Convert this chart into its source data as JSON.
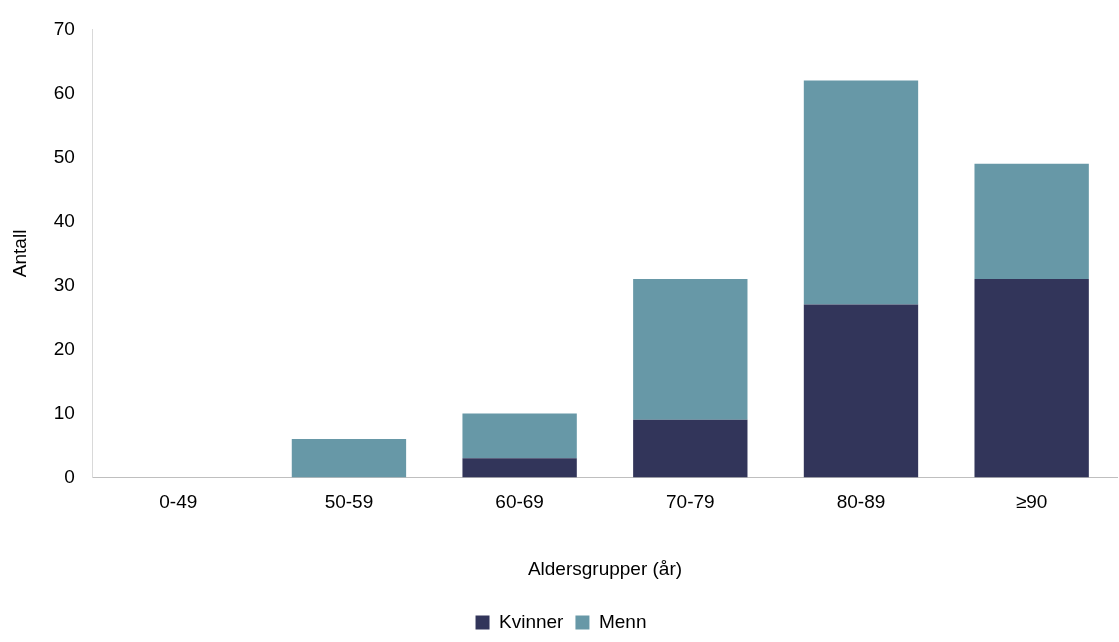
{
  "chart_data": {
    "type": "bar",
    "stacked": true,
    "xlabel": "Aldersgrupper (år)",
    "ylabel": "Antall",
    "categories": [
      "0-49",
      "50-59",
      "60-69",
      "70-79",
      "80-89",
      "≥90"
    ],
    "series": [
      {
        "name": "Kvinner",
        "color": "#32355a",
        "values": [
          0,
          0,
          3,
          9,
          27,
          31
        ]
      },
      {
        "name": "Menn",
        "color": "#6798a7",
        "values": [
          0,
          6,
          7,
          22,
          35,
          18
        ]
      }
    ],
    "ylim": [
      0,
      70
    ],
    "yticks": [
      0,
      10,
      20,
      30,
      40,
      50,
      60,
      70
    ],
    "grid": false,
    "legend": "bottom"
  }
}
